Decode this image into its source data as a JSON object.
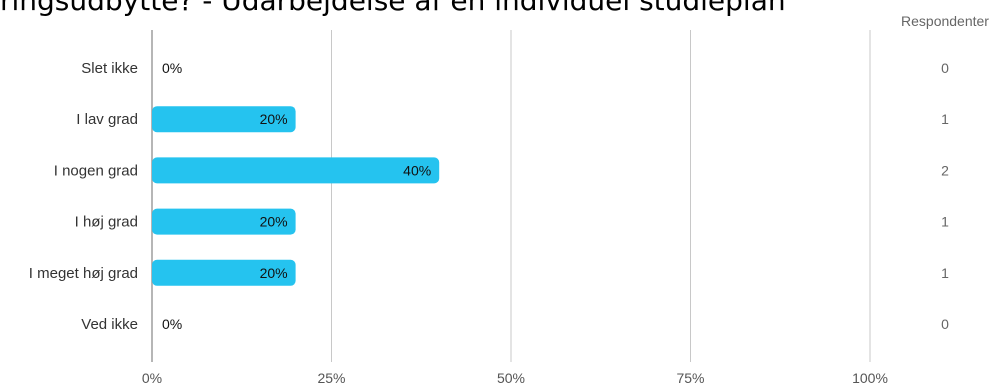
{
  "chart_data": {
    "type": "bar",
    "orientation": "horizontal",
    "title": "ringsudbytte? - Udarbejdelse af en individuel studieplan",
    "categories": [
      "Slet ikke",
      "I lav grad",
      "I nogen grad",
      "I høj grad",
      "I meget høj grad",
      "Ved ikke"
    ],
    "values": [
      0,
      20,
      40,
      20,
      20,
      0
    ],
    "value_labels": [
      "0%",
      "20%",
      "40%",
      "20%",
      "20%",
      "0%"
    ],
    "respondents_header": "Respondenter",
    "respondents": [
      "0",
      "1",
      "2",
      "1",
      "1",
      "0"
    ],
    "x_ticks": [
      "0%",
      "25%",
      "50%",
      "75%",
      "100%"
    ],
    "xlim": [
      0,
      100
    ],
    "grid": true,
    "bar_color": "#25C3EF"
  }
}
